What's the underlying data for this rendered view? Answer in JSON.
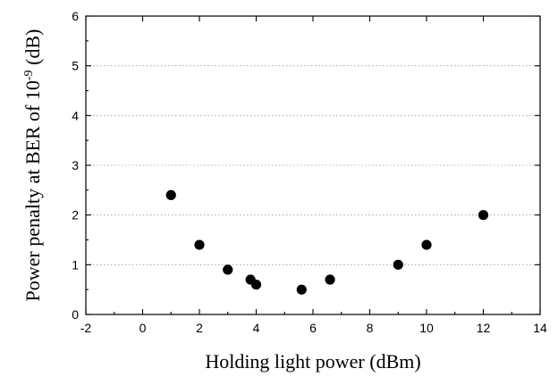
{
  "chart_data": {
    "type": "scatter",
    "xlabel": "Holding light power (dBm)",
    "ylabel_prefix": "Power penalty at BER of 10",
    "ylabel_exponent": "-9",
    "ylabel_suffix": " (dB)",
    "xlim": [
      -2,
      14
    ],
    "ylim": [
      0,
      6
    ],
    "x_ticks": [
      -2,
      0,
      2,
      4,
      6,
      8,
      10,
      12,
      14
    ],
    "y_ticks": [
      0,
      1,
      2,
      3,
      4,
      5,
      6
    ],
    "grid": "horizontal dotted",
    "marker_color": "#000000",
    "series": [
      {
        "points": [
          {
            "x": 1.0,
            "y": 2.4
          },
          {
            "x": 2.0,
            "y": 1.4
          },
          {
            "x": 3.0,
            "y": 0.9
          },
          {
            "x": 3.8,
            "y": 0.7
          },
          {
            "x": 4.0,
            "y": 0.6
          },
          {
            "x": 5.6,
            "y": 0.5
          },
          {
            "x": 6.6,
            "y": 0.7
          },
          {
            "x": 9.0,
            "y": 1.0
          },
          {
            "x": 10.0,
            "y": 1.4
          },
          {
            "x": 12.0,
            "y": 2.0
          }
        ]
      }
    ]
  }
}
